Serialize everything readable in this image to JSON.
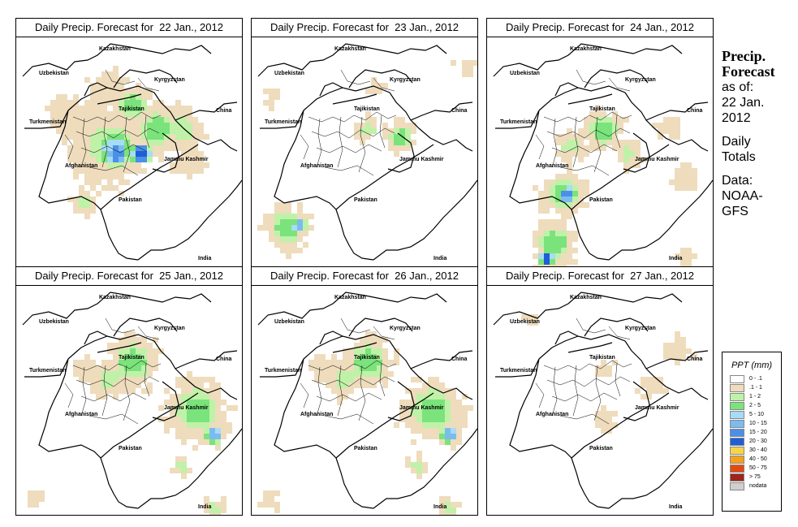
{
  "panels": [
    {
      "title": "Daily Precip. Forecast for  22 Jan., 2012",
      "intensity": "high"
    },
    {
      "title": "Daily Precip. Forecast for  23 Jan., 2012",
      "intensity": "low"
    },
    {
      "title": "Daily Precip. Forecast for  24 Jan., 2012",
      "intensity": "south"
    },
    {
      "title": "Daily Precip. Forecast for  25 Jan., 2012",
      "intensity": "mid"
    },
    {
      "title": "Daily Precip. Forecast for  26 Jan., 2012",
      "intensity": "mid"
    },
    {
      "title": "Daily Precip. Forecast for  27 Jan., 2012",
      "intensity": "none"
    }
  ],
  "map_labels": {
    "uzbekistan": "Uzbekistan",
    "kazakhstan": "Kazakhstan",
    "kyrgyzstan": "Kyrgyzstan",
    "tajikistan": "Tajikistan",
    "turkmenistan": "Turkmenistan",
    "china": "China",
    "afghanistan": "Afghanistan",
    "jammu": "Jammu Kashmir",
    "pakistan": "Pakistan",
    "india": "India"
  },
  "side_info": {
    "heading_line1": "Precip.",
    "heading_line2": "Forecast",
    "asof_line1": "as of:",
    "asof_line2": "22 Jan.",
    "asof_line3": "2012",
    "totals_line1": "Daily",
    "totals_line2": "Totals",
    "data_line1": "Data:",
    "data_line2": "NOAA-",
    "data_line3": "GFS"
  },
  "legend": {
    "title": "PPT (mm)",
    "items": [
      {
        "label": "0 - .1",
        "color": "#ffffff"
      },
      {
        "label": ".1 - 1",
        "color": "#eedcbc"
      },
      {
        "label": "1 - 2",
        "color": "#bff2a8"
      },
      {
        "label": "2 - 5",
        "color": "#7be37b"
      },
      {
        "label": "5 - 10",
        "color": "#a6dcf5"
      },
      {
        "label": "10 - 15",
        "color": "#7bbcef"
      },
      {
        "label": "15 - 20",
        "color": "#4a90e8"
      },
      {
        "label": "20 - 30",
        "color": "#1f5fd6"
      },
      {
        "label": "30 - 40",
        "color": "#f6d54a"
      },
      {
        "label": "40 - 50",
        "color": "#f4a21c"
      },
      {
        "label": "50 - 75",
        "color": "#e24a14"
      },
      {
        "label": "> 75",
        "color": "#a0231c"
      },
      {
        "label": "nodata",
        "color": "#cfcfcf"
      }
    ]
  }
}
